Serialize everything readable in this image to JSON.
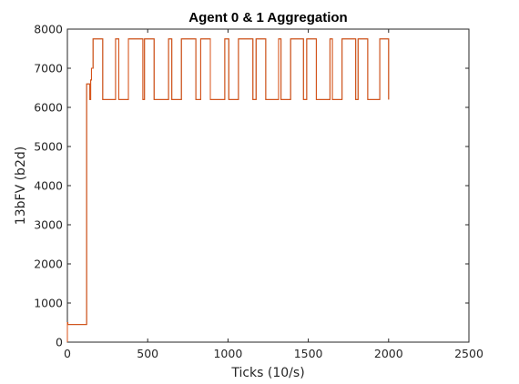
{
  "chart_data": {
    "type": "line",
    "title": "Agent 0 & 1 Aggregation",
    "xlabel": "Ticks (10/s)",
    "ylabel": "13bFV (b2d)",
    "xlim": [
      0,
      2500
    ],
    "ylim": [
      0,
      8000
    ],
    "xticks": [
      0,
      500,
      1000,
      1500,
      2000,
      2500
    ],
    "yticks": [
      0,
      1000,
      2000,
      3000,
      4000,
      5000,
      6000,
      7000,
      8000
    ],
    "grid": false,
    "legend": "none",
    "series": [
      {
        "color": "#d95319",
        "overlay_color": "#8b4513",
        "x": [
          0,
          0,
          3,
          3,
          120,
          120,
          140,
          140,
          145,
          145,
          150,
          150,
          160,
          160,
          220,
          220,
          300,
          300,
          320,
          320,
          380,
          380,
          470,
          470,
          480,
          480,
          540,
          540,
          630,
          630,
          650,
          650,
          710,
          710,
          800,
          800,
          830,
          830,
          890,
          890,
          980,
          980,
          1005,
          1005,
          1065,
          1065,
          1155,
          1155,
          1175,
          1175,
          1235,
          1235,
          1315,
          1315,
          1330,
          1330,
          1390,
          1390,
          1470,
          1470,
          1490,
          1490,
          1550,
          1550,
          1635,
          1635,
          1650,
          1650,
          1710,
          1710,
          1795,
          1795,
          1810,
          1810,
          1870,
          1870,
          1945,
          1945,
          2000,
          2000
        ],
        "y": [
          0,
          500,
          500,
          450,
          450,
          6600,
          6600,
          6200,
          6200,
          6700,
          6700,
          7000,
          7000,
          7750,
          7750,
          6200,
          6200,
          7750,
          7750,
          6200,
          6200,
          7750,
          7750,
          6200,
          6200,
          7750,
          7750,
          6200,
          6200,
          7750,
          7750,
          6200,
          6200,
          7750,
          7750,
          6200,
          6200,
          7750,
          7750,
          6200,
          6200,
          7750,
          7750,
          6200,
          6200,
          7750,
          7750,
          6200,
          6200,
          7750,
          7750,
          6200,
          6200,
          7750,
          7750,
          6200,
          6200,
          7750,
          7750,
          6200,
          6200,
          7750,
          7750,
          6200,
          6200,
          7750,
          7750,
          6200,
          6200,
          7750,
          7750,
          6200,
          6200,
          7750,
          7750,
          6200,
          6200,
          7750,
          7750,
          6200
        ]
      }
    ]
  }
}
